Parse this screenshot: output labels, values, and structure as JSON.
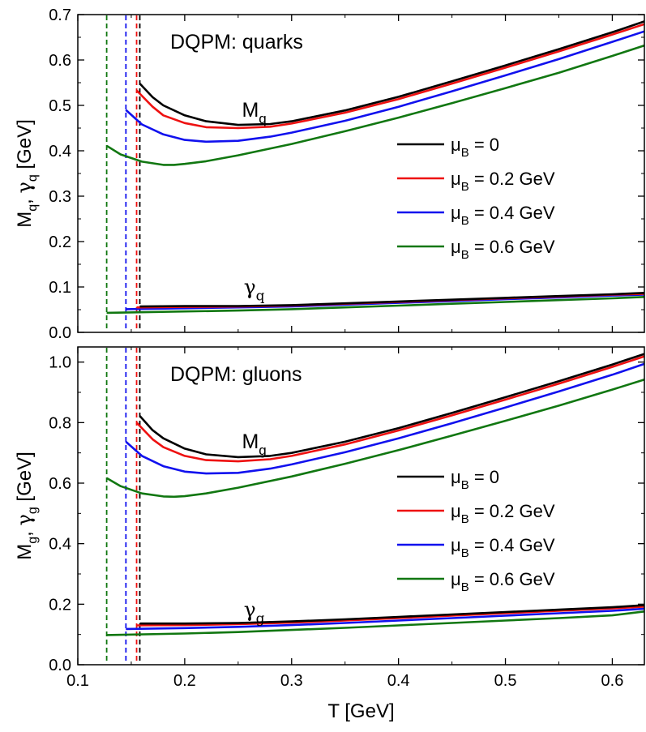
{
  "x_axis": {
    "label": "T [GeV]",
    "ticks": [
      "0.1",
      "0.2",
      "0.3",
      "0.4",
      "0.5",
      "0.6"
    ]
  },
  "colors": {
    "mu0": "#000000",
    "mu02": "#ee1111",
    "mu04": "#1111ee",
    "mu06": "#117711"
  },
  "chart_data": [
    {
      "type": "line",
      "title": "DQPM: quarks",
      "xlabel": "T [GeV]",
      "ylabel": "M_q, γ_q [GeV]",
      "xlim": [
        0.1,
        0.63
      ],
      "ylim": [
        0,
        0.7
      ],
      "yticks": [
        "0.0",
        "0.1",
        "0.2",
        "0.3",
        "0.4",
        "0.5",
        "0.6",
        "0.7"
      ],
      "grid": false,
      "legend_position": "right-middle",
      "legend": [
        "μB = 0",
        "μB = 0.2 GeV",
        "μB = 0.4 GeV",
        "μB = 0.6 GeV"
      ],
      "annotations": [
        {
          "main": "M",
          "sub": "q",
          "greek": false,
          "x": 0.265,
          "y": 0.475
        },
        {
          "main": "γ",
          "sub": "q",
          "greek": true,
          "x": 0.265,
          "y": 0.085
        }
      ],
      "critical_T": [
        0.158,
        0.155,
        0.145,
        0.127
      ],
      "series": [
        {
          "name": "μB = 0",
          "color_key": "mu0",
          "mass": {
            "x": [
              0.158,
              0.17,
              0.18,
              0.2,
              0.22,
              0.25,
              0.28,
              0.3,
              0.35,
              0.4,
              0.45,
              0.5,
              0.55,
              0.6,
              0.63
            ],
            "y": [
              0.548,
              0.518,
              0.5,
              0.478,
              0.465,
              0.457,
              0.459,
              0.465,
              0.489,
              0.519,
              0.553,
              0.588,
              0.624,
              0.661,
              0.685
            ]
          },
          "width": {
            "x": [
              0.158,
              0.2,
              0.25,
              0.3,
              0.35,
              0.4,
              0.45,
              0.5,
              0.55,
              0.6,
              0.63
            ],
            "y": [
              0.057,
              0.058,
              0.058,
              0.06,
              0.064,
              0.068,
              0.072,
              0.076,
              0.08,
              0.084,
              0.087
            ]
          }
        },
        {
          "name": "μB = 0.2 GeV",
          "color_key": "mu02",
          "mass": {
            "x": [
              0.155,
              0.17,
              0.18,
              0.2,
              0.22,
              0.25,
              0.28,
              0.3,
              0.35,
              0.4,
              0.45,
              0.5,
              0.55,
              0.6,
              0.63
            ],
            "y": [
              0.533,
              0.497,
              0.478,
              0.461,
              0.452,
              0.45,
              0.453,
              0.46,
              0.484,
              0.514,
              0.548,
              0.583,
              0.619,
              0.656,
              0.679
            ]
          },
          "width": {
            "x": [
              0.155,
              0.2,
              0.25,
              0.3,
              0.35,
              0.4,
              0.45,
              0.5,
              0.55,
              0.6,
              0.63
            ],
            "y": [
              0.055,
              0.056,
              0.057,
              0.059,
              0.063,
              0.067,
              0.071,
              0.075,
              0.079,
              0.083,
              0.085
            ]
          }
        },
        {
          "name": "μB = 0.4 GeV",
          "color_key": "mu04",
          "mass": {
            "x": [
              0.145,
              0.16,
              0.18,
              0.2,
              0.22,
              0.25,
              0.28,
              0.3,
              0.35,
              0.4,
              0.45,
              0.5,
              0.55,
              0.6,
              0.63
            ],
            "y": [
              0.49,
              0.458,
              0.436,
              0.424,
              0.42,
              0.422,
              0.431,
              0.44,
              0.466,
              0.497,
              0.531,
              0.566,
              0.602,
              0.64,
              0.663
            ]
          },
          "width": {
            "x": [
              0.145,
              0.2,
              0.25,
              0.3,
              0.35,
              0.4,
              0.45,
              0.5,
              0.55,
              0.6,
              0.63
            ],
            "y": [
              0.051,
              0.053,
              0.055,
              0.057,
              0.061,
              0.065,
              0.069,
              0.073,
              0.077,
              0.081,
              0.083
            ]
          }
        },
        {
          "name": "μB = 0.6 GeV",
          "color_key": "mu06",
          "mass": {
            "x": [
              0.127,
              0.14,
              0.16,
              0.18,
              0.19,
              0.2,
              0.22,
              0.25,
              0.3,
              0.35,
              0.4,
              0.45,
              0.5,
              0.55,
              0.6,
              0.63
            ],
            "y": [
              0.411,
              0.392,
              0.376,
              0.369,
              0.369,
              0.371,
              0.377,
              0.39,
              0.415,
              0.443,
              0.473,
              0.505,
              0.538,
              0.572,
              0.609,
              0.632
            ]
          },
          "width": {
            "x": [
              0.127,
              0.2,
              0.25,
              0.3,
              0.35,
              0.4,
              0.45,
              0.5,
              0.55,
              0.6,
              0.63
            ],
            "y": [
              0.043,
              0.046,
              0.048,
              0.051,
              0.055,
              0.059,
              0.063,
              0.067,
              0.071,
              0.075,
              0.078
            ]
          }
        }
      ]
    },
    {
      "type": "line",
      "title": "DQPM: gluons",
      "xlabel": "T [GeV]",
      "ylabel": "M_g, γ_g [GeV]",
      "xlim": [
        0.1,
        0.63
      ],
      "ylim": [
        0,
        1.05
      ],
      "yticks": [
        "0.0",
        "0.2",
        "0.4",
        "0.6",
        "0.8",
        "1.0"
      ],
      "grid": false,
      "legend_position": "right-middle",
      "legend": [
        "μB = 0",
        "μB = 0.2 GeV",
        "μB = 0.4 GeV",
        "μB = 0.6 GeV"
      ],
      "annotations": [
        {
          "main": "M",
          "sub": "g",
          "greek": false,
          "x": 0.265,
          "y": 0.715
        },
        {
          "main": "γ",
          "sub": "g",
          "greek": true,
          "x": 0.265,
          "y": 0.16
        }
      ],
      "critical_T": [
        0.158,
        0.155,
        0.145,
        0.127
      ],
      "series": [
        {
          "name": "μB = 0",
          "color_key": "mu0",
          "mass": {
            "x": [
              0.158,
              0.17,
              0.18,
              0.2,
              0.22,
              0.25,
              0.28,
              0.3,
              0.35,
              0.4,
              0.45,
              0.5,
              0.55,
              0.6,
              0.63
            ],
            "y": [
              0.822,
              0.775,
              0.748,
              0.714,
              0.695,
              0.686,
              0.69,
              0.7,
              0.737,
              0.782,
              0.832,
              0.884,
              0.937,
              0.992,
              1.027
            ]
          },
          "width": {
            "x": [
              0.158,
              0.2,
              0.25,
              0.3,
              0.35,
              0.4,
              0.45,
              0.5,
              0.55,
              0.6,
              0.63
            ],
            "y": [
              0.136,
              0.136,
              0.138,
              0.143,
              0.15,
              0.158,
              0.166,
              0.174,
              0.182,
              0.19,
              0.197
            ]
          }
        },
        {
          "name": "μB = 0.2 GeV",
          "color_key": "mu02",
          "mass": {
            "x": [
              0.155,
              0.17,
              0.18,
              0.2,
              0.22,
              0.25,
              0.28,
              0.3,
              0.35,
              0.4,
              0.45,
              0.5,
              0.55,
              0.6,
              0.63
            ],
            "y": [
              0.8,
              0.745,
              0.719,
              0.69,
              0.676,
              0.672,
              0.679,
              0.69,
              0.728,
              0.774,
              0.824,
              0.876,
              0.929,
              0.984,
              1.019
            ]
          },
          "width": {
            "x": [
              0.155,
              0.2,
              0.25,
              0.3,
              0.35,
              0.4,
              0.45,
              0.5,
              0.55,
              0.6,
              0.63
            ],
            "y": [
              0.13,
              0.131,
              0.134,
              0.139,
              0.146,
              0.154,
              0.162,
              0.17,
              0.178,
              0.186,
              0.192
            ]
          }
        },
        {
          "name": "μB = 0.4 GeV",
          "color_key": "mu04",
          "mass": {
            "x": [
              0.145,
              0.16,
              0.18,
              0.2,
              0.22,
              0.25,
              0.28,
              0.3,
              0.35,
              0.4,
              0.45,
              0.5,
              0.55,
              0.6,
              0.63
            ],
            "y": [
              0.737,
              0.69,
              0.656,
              0.638,
              0.632,
              0.634,
              0.648,
              0.662,
              0.702,
              0.748,
              0.798,
              0.85,
              0.903,
              0.958,
              0.994
            ]
          },
          "width": {
            "x": [
              0.145,
              0.2,
              0.25,
              0.3,
              0.35,
              0.4,
              0.45,
              0.5,
              0.55,
              0.6,
              0.63
            ],
            "y": [
              0.118,
              0.121,
              0.125,
              0.131,
              0.138,
              0.146,
              0.154,
              0.162,
              0.17,
              0.178,
              0.185
            ]
          }
        },
        {
          "name": "μB = 0.6 GeV",
          "color_key": "mu06",
          "mass": {
            "x": [
              0.127,
              0.14,
              0.16,
              0.18,
              0.19,
              0.2,
              0.22,
              0.25,
              0.3,
              0.35,
              0.4,
              0.45,
              0.5,
              0.55,
              0.6,
              0.63
            ],
            "y": [
              0.617,
              0.59,
              0.566,
              0.556,
              0.555,
              0.557,
              0.566,
              0.585,
              0.622,
              0.664,
              0.709,
              0.757,
              0.806,
              0.856,
              0.909,
              0.942
            ]
          },
          "width": {
            "x": [
              0.127,
              0.2,
              0.25,
              0.3,
              0.35,
              0.4,
              0.45,
              0.5,
              0.55,
              0.6,
              0.63
            ],
            "y": [
              0.098,
              0.103,
              0.108,
              0.115,
              0.122,
              0.13,
              0.138,
              0.146,
              0.154,
              0.163,
              0.176
            ]
          }
        }
      ]
    }
  ]
}
